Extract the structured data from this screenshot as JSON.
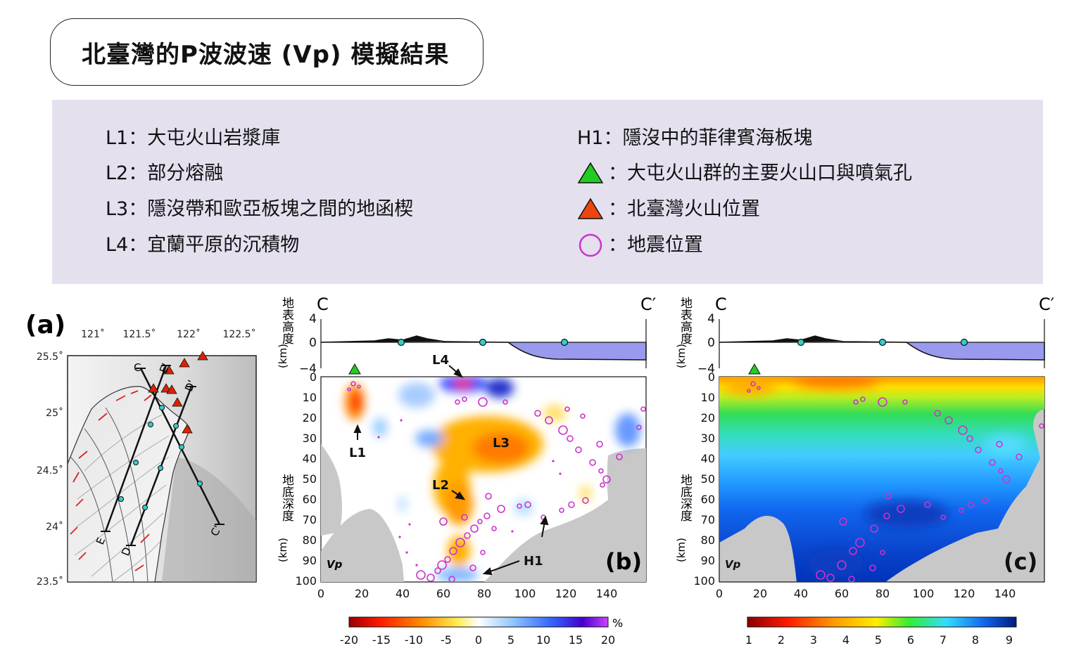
{
  "title": "北臺灣的P波波速 (Vp) 模擬結果",
  "legend": {
    "L1": "L1：大屯火山岩漿庫",
    "L2": "L2：部分熔融",
    "L3": "L3：隱沒帶和歐亞板塊之間的地函楔",
    "L4": "L4：宜蘭平原的沉積物",
    "H1": "H1：隱沒中的菲律賓海板塊",
    "green_tri": "：大屯火山群的主要火山口與噴氣孔",
    "orange_tri": "：北臺灣火山位置",
    "circle": "：地震位置"
  },
  "colors": {
    "green_triangle": "#22cc22",
    "orange_triangle": "#ee4411",
    "quake_circle": "#cc33cc",
    "sea": "#9999ee",
    "legend_bg": "#e4e0ee"
  },
  "panel_a": {
    "label": "(a)",
    "lon_ticks": [
      "121˚",
      "121.5˚",
      "122˚",
      "122.5˚"
    ],
    "lat_ticks": [
      "25.5˚",
      "25˚",
      "24.5˚",
      "24˚",
      "23.5˚"
    ],
    "profile_labels": {
      "C": "C",
      "Cp": "C'",
      "D": "D",
      "Dp": "D'",
      "E": "E",
      "Ep": "E'"
    }
  },
  "panel_b": {
    "label": "(b)",
    "quantity": "Vp",
    "start": "C",
    "end": "C′",
    "elev_label": "地表高度",
    "depth_label": "地底深度",
    "unit": "(km)",
    "elev_ticks": [
      "4",
      "0",
      "−4"
    ],
    "depth_ticks": [
      "0",
      "10",
      "20",
      "30",
      "40",
      "50",
      "60",
      "70",
      "80",
      "90",
      "100"
    ],
    "x_ticks": [
      "0",
      "20",
      "40",
      "60",
      "80",
      "100",
      "120",
      "140"
    ],
    "annotations": {
      "L1": "L1",
      "L2": "L2",
      "L3": "L3",
      "L4": "L4",
      "H1": "H1"
    },
    "colorbar_ticks": [
      "-20",
      "-15",
      "-10",
      "-5",
      "0",
      "5",
      "10",
      "15",
      "20"
    ],
    "colorbar_unit": "%"
  },
  "panel_c": {
    "label": "(c)",
    "quantity": "Vp",
    "start": "C",
    "end": "C′",
    "elev_label": "地表高度",
    "depth_label": "地底深度",
    "unit": "(km)",
    "elev_ticks": [
      "4",
      "0",
      "−4"
    ],
    "depth_ticks": [
      "0",
      "10",
      "20",
      "30",
      "40",
      "50",
      "60",
      "70",
      "80",
      "90",
      "100"
    ],
    "x_ticks": [
      "0",
      "20",
      "40",
      "60",
      "80",
      "100",
      "120",
      "140"
    ],
    "colorbar_ticks": [
      "1",
      "2",
      "3",
      "4",
      "5",
      "6",
      "7",
      "8",
      "9"
    ]
  }
}
